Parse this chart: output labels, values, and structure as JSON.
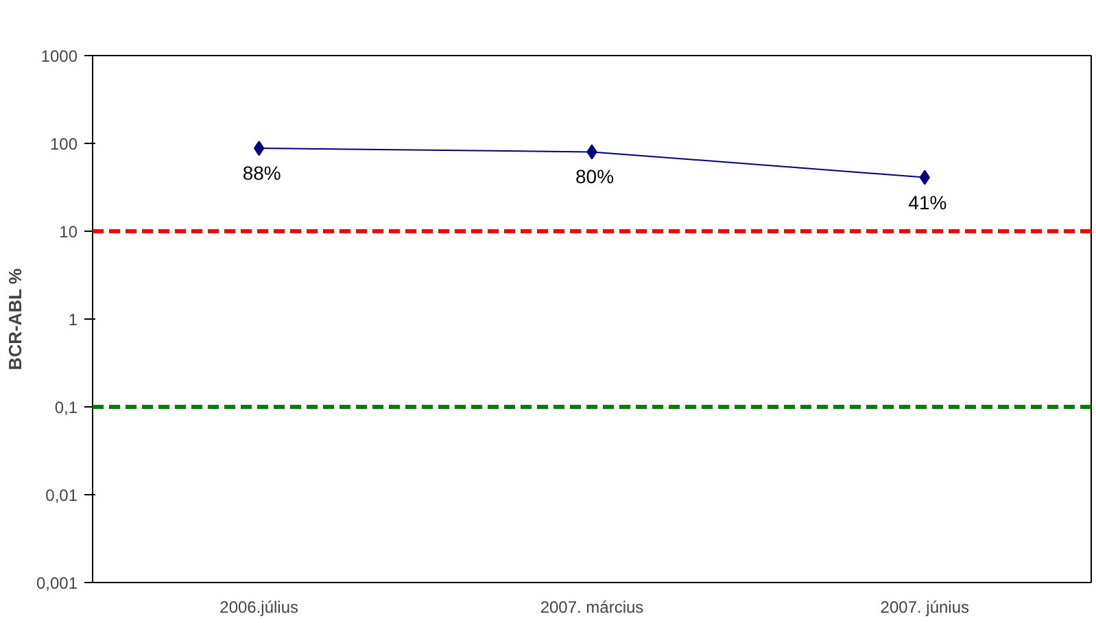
{
  "chart_data": {
    "type": "line",
    "ylabel": "BCR-ABL %",
    "categories": [
      "2006.július",
      "2007. március",
      "2007. június"
    ],
    "series": [
      {
        "color": "#000080",
        "values": [
          88,
          80,
          41
        ],
        "value_labels": [
          "88%",
          "80%",
          "41%"
        ]
      }
    ],
    "log": "y",
    "ylim": [
      0.001,
      1000
    ],
    "yticks": [
      {
        "value": 0.001,
        "label": "0,001"
      },
      {
        "value": 0.01,
        "label": "0,01"
      },
      {
        "value": 0.1,
        "label": "0,1"
      },
      1,
      10,
      100,
      1000
    ],
    "ref_lines": [
      {
        "axis": "y",
        "value": 10,
        "color": "#ff0000",
        "line_style": "dashed"
      },
      {
        "axis": "y",
        "value": 0.1,
        "color": "#008000",
        "line_style": "dashed"
      }
    ],
    "marker": "diamond",
    "line_style": "solid"
  }
}
